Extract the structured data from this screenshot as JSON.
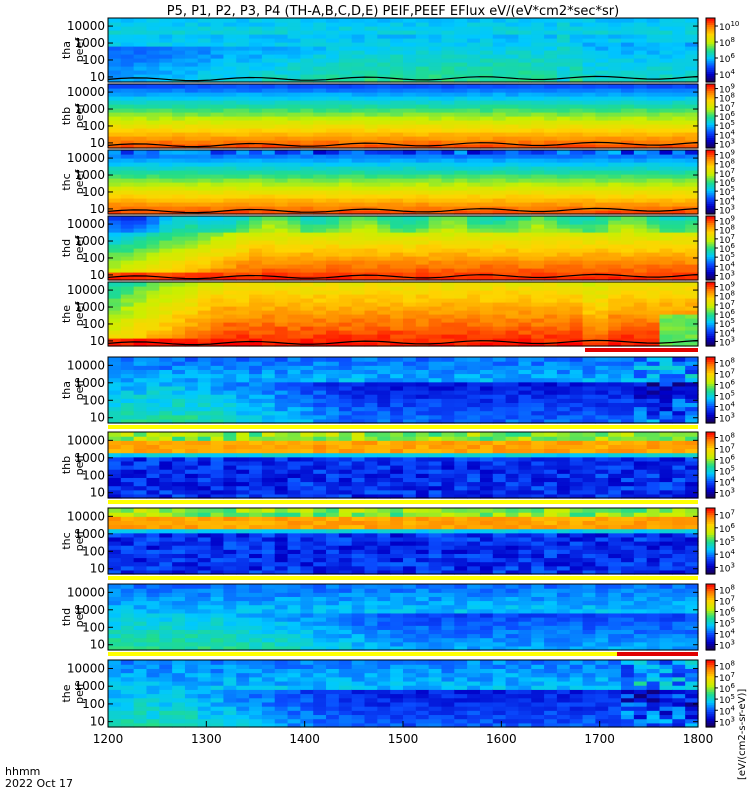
{
  "title": "P5, P1, P2, P3, P4 (TH-A,B,C,D,E) PEIF,PEEF EFlux eV/(eV*cm2*sec*sr)",
  "chart_data": {
    "type": "heatmap",
    "title": "P5, P1, P2, P3, P4 (TH-A,B,C,D,E) PEIF,PEEF EFlux eV/(eV*cm2*sec*sr)",
    "x_label_line1": "hhmm",
    "x_label_line2": "2022 Oct 17",
    "x_range": [
      "1200",
      "1800"
    ],
    "x_ticks": [
      "1200",
      "1300",
      "1400",
      "1500",
      "1600",
      "1700",
      "1800"
    ],
    "y_scale": "log",
    "y_range": [
      5,
      30000
    ],
    "y_ticks": [
      "10",
      "100",
      "1000",
      "10000"
    ],
    "colorbar_unit": "[eV/(cm2-s-sr-eV)]",
    "colorbar_label_vertical": "[eV/(cm2-s-sr-eV)]",
    "colorbar_scale": "log",
    "colors": {
      "spectrum": [
        "#1a004a",
        "#0000c8",
        "#0a4cff",
        "#00c8ff",
        "#22dd88",
        "#c8f000",
        "#ffd400",
        "#ff7f00",
        "#ff0000"
      ],
      "flag_red": "#e00000",
      "flag_yellow": "#ffff00",
      "potential_line": "#000000"
    },
    "panels": [
      {
        "label1": "tha",
        "label2": "peef",
        "kind": "electron",
        "cbar_ticks": [
          "10^4",
          "10^6",
          "10^8",
          "10^10"
        ],
        "pattern": "tha_e",
        "bottom_bar": "none"
      },
      {
        "label1": "thb",
        "label2": "peef",
        "kind": "electron",
        "cbar_ticks": [
          "10^3",
          "10^4",
          "10^5",
          "10^6",
          "10^7",
          "10^8",
          "10^9"
        ],
        "pattern": "thb_e",
        "bottom_bar": "none"
      },
      {
        "label1": "thc",
        "label2": "peef",
        "kind": "electron",
        "cbar_ticks": [
          "10^3",
          "10^4",
          "10^5",
          "10^6",
          "10^7",
          "10^8",
          "10^9"
        ],
        "pattern": "thc_e",
        "bottom_bar": "none"
      },
      {
        "label1": "thd",
        "label2": "peef",
        "kind": "electron",
        "cbar_ticks": [
          "10^3",
          "10^4",
          "10^5",
          "10^6",
          "10^7",
          "10^8",
          "10^9"
        ],
        "pattern": "thd_e",
        "bottom_bar": "none"
      },
      {
        "label1": "the",
        "label2": "peef",
        "kind": "electron",
        "cbar_ticks": [
          "10^3",
          "10^4",
          "10^5",
          "10^6",
          "10^7",
          "10^8",
          "10^9"
        ],
        "pattern": "the_e",
        "bottom_bar": "red-partial"
      },
      {
        "label1": "tha",
        "label2": "peif",
        "kind": "ion",
        "cbar_ticks": [
          "10^3",
          "10^4",
          "10^5",
          "10^6",
          "10^7",
          "10^8"
        ],
        "pattern": "ion_a",
        "bottom_bar": "yellow"
      },
      {
        "label1": "thb",
        "label2": "peif",
        "kind": "ion",
        "cbar_ticks": [
          "10^3",
          "10^4",
          "10^5",
          "10^6",
          "10^7",
          "10^8"
        ],
        "pattern": "ion_bc",
        "bottom_bar": "yellow"
      },
      {
        "label1": "thc",
        "label2": "peif",
        "kind": "ion",
        "cbar_ticks": [
          "10^3",
          "10^4",
          "10^5",
          "10^6",
          "10^7"
        ],
        "pattern": "ion_bc",
        "bottom_bar": "yellow"
      },
      {
        "label1": "thd",
        "label2": "peif",
        "kind": "ion",
        "cbar_ticks": [
          "10^3",
          "10^4",
          "10^5",
          "10^6",
          "10^7",
          "10^8"
        ],
        "pattern": "ion_d",
        "bottom_bar": "yellow-red"
      },
      {
        "label1": "the",
        "label2": "peif",
        "kind": "ion",
        "cbar_ticks": [
          "10^3",
          "10^4",
          "10^5",
          "10^6",
          "10^7",
          "10^8"
        ],
        "pattern": "ion_e",
        "bottom_bar": "none"
      }
    ]
  }
}
